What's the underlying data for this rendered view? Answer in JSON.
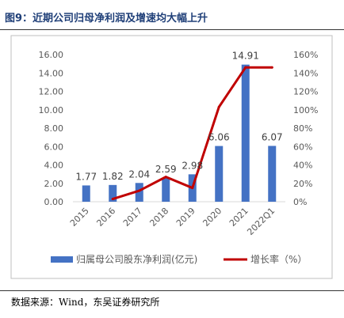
{
  "figure": {
    "title": "图9：近期公司归母净利润及增速均大幅上升",
    "source": "数据来源：Wind，东吴证券研究所"
  },
  "chart_data": {
    "type": "bar",
    "categories": [
      "2015",
      "2016",
      "2017",
      "2018",
      "2019",
      "2020",
      "2021",
      "2022Q1"
    ],
    "series": [
      {
        "name": "归属母公司股东净利润(亿元)",
        "type": "bar",
        "axis": "left",
        "color": "#4472c4",
        "values": [
          1.77,
          1.82,
          2.04,
          2.59,
          2.98,
          6.06,
          14.91,
          6.07
        ],
        "labels": [
          "1.77",
          "1.82",
          "2.04",
          "2.59",
          "2.98",
          "6.06",
          "14.91",
          "6.07"
        ]
      },
      {
        "name": "增长率（%）",
        "type": "line",
        "axis": "right",
        "color": "#c00000",
        "x": [
          "2016",
          "2017",
          "2018",
          "2019",
          "2020",
          "2021",
          "2022Q1"
        ],
        "values": [
          3,
          12,
          27,
          15,
          103,
          146,
          146
        ]
      }
    ],
    "y_left": {
      "min": 0,
      "max": 16,
      "step": 2,
      "ticks": [
        "0.00",
        "2.00",
        "4.00",
        "6.00",
        "8.00",
        "10.00",
        "12.00",
        "14.00",
        "16.00"
      ]
    },
    "y_right": {
      "min": 0,
      "max": 160,
      "step": 20,
      "ticks": [
        "0%",
        "20%",
        "40%",
        "60%",
        "80%",
        "100%",
        "120%",
        "140%",
        "160%"
      ]
    },
    "grid": false,
    "legend_position": "bottom"
  }
}
